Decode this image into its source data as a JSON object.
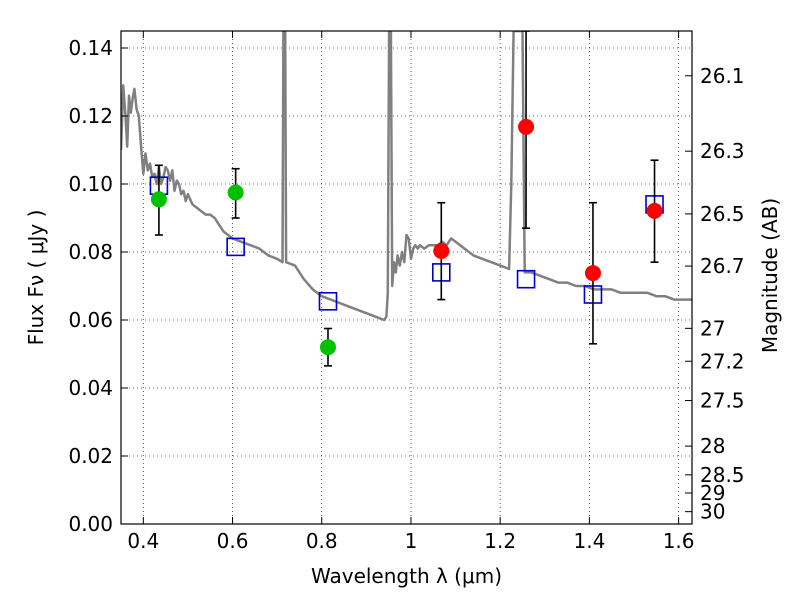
{
  "chart_data": {
    "type": "scatter",
    "xlabel": "Wavelength  λ (μm)",
    "ylabel": "Flux  Fν  ( μJy )",
    "y2label": "Magnitude (AB)",
    "xlim": [
      0.35,
      1.63
    ],
    "ylim": [
      0.0,
      0.145
    ],
    "grid": true,
    "x_ticks": [
      {
        "value": 0.4,
        "label": "0.4"
      },
      {
        "value": 0.6,
        "label": "0.6"
      },
      {
        "value": 0.8,
        "label": "0.8"
      },
      {
        "value": 1.0,
        "label": "1"
      },
      {
        "value": 1.2,
        "label": "1.2"
      },
      {
        "value": 1.4,
        "label": "1.4"
      },
      {
        "value": 1.6,
        "label": "1.6"
      }
    ],
    "y_ticks": [
      {
        "value": 0.0,
        "label": "0.00"
      },
      {
        "value": 0.02,
        "label": "0.02"
      },
      {
        "value": 0.04,
        "label": "0.04"
      },
      {
        "value": 0.06,
        "label": "0.06"
      },
      {
        "value": 0.08,
        "label": "0.08"
      },
      {
        "value": 0.1,
        "label": "0.10"
      },
      {
        "value": 0.12,
        "label": "0.12"
      },
      {
        "value": 0.14,
        "label": "0.14"
      }
    ],
    "y2_ticks": [
      {
        "mag": 26.1,
        "label": "26.1"
      },
      {
        "mag": 26.3,
        "label": "26.3"
      },
      {
        "mag": 26.5,
        "label": "26.5"
      },
      {
        "mag": 26.7,
        "label": "26.7"
      },
      {
        "mag": 27.0,
        "label": "27"
      },
      {
        "mag": 27.2,
        "label": "27.2"
      },
      {
        "mag": 27.5,
        "label": "27.5"
      },
      {
        "mag": 28.0,
        "label": "28"
      },
      {
        "mag": 28.5,
        "label": "28.5"
      },
      {
        "mag": 29.0,
        "label": "29"
      },
      {
        "mag": 30.0,
        "label": "30"
      }
    ],
    "series": [
      {
        "kind": "line",
        "color": "#808080",
        "points": [
          [
            0.35,
            0.11
          ],
          [
            0.355,
            0.129
          ],
          [
            0.36,
            0.12
          ],
          [
            0.364,
            0.111
          ],
          [
            0.368,
            0.126
          ],
          [
            0.372,
            0.121
          ],
          [
            0.376,
            0.125
          ],
          [
            0.38,
            0.128
          ],
          [
            0.385,
            0.122
          ],
          [
            0.39,
            0.12
          ],
          [
            0.395,
            0.111
          ],
          [
            0.4,
            0.103
          ],
          [
            0.405,
            0.109
          ],
          [
            0.41,
            0.104
          ],
          [
            0.415,
            0.106
          ],
          [
            0.42,
            0.102
          ],
          [
            0.425,
            0.103
          ],
          [
            0.43,
            0.1
          ],
          [
            0.435,
            0.105
          ],
          [
            0.44,
            0.1
          ],
          [
            0.445,
            0.102
          ],
          [
            0.45,
            0.105
          ],
          [
            0.455,
            0.104
          ],
          [
            0.46,
            0.101
          ],
          [
            0.465,
            0.104
          ],
          [
            0.47,
            0.098
          ],
          [
            0.475,
            0.101
          ],
          [
            0.48,
            0.1
          ],
          [
            0.485,
            0.097
          ],
          [
            0.49,
            0.098
          ],
          [
            0.495,
            0.095
          ],
          [
            0.5,
            0.097
          ],
          [
            0.51,
            0.094
          ],
          [
            0.52,
            0.093
          ],
          [
            0.53,
            0.092
          ],
          [
            0.54,
            0.091
          ],
          [
            0.55,
            0.091
          ],
          [
            0.56,
            0.09
          ],
          [
            0.57,
            0.088
          ],
          [
            0.58,
            0.086
          ],
          [
            0.59,
            0.085
          ],
          [
            0.6,
            0.084
          ],
          [
            0.62,
            0.083
          ],
          [
            0.64,
            0.082
          ],
          [
            0.66,
            0.081
          ],
          [
            0.68,
            0.079
          ],
          [
            0.7,
            0.078
          ],
          [
            0.712,
            0.077
          ],
          [
            0.714,
            0.145
          ],
          [
            0.718,
            0.145
          ],
          [
            0.72,
            0.077
          ],
          [
            0.74,
            0.076
          ],
          [
            0.76,
            0.072
          ],
          [
            0.78,
            0.069
          ],
          [
            0.8,
            0.067
          ],
          [
            0.82,
            0.066
          ],
          [
            0.84,
            0.065
          ],
          [
            0.86,
            0.064
          ],
          [
            0.88,
            0.063
          ],
          [
            0.9,
            0.062
          ],
          [
            0.92,
            0.061
          ],
          [
            0.94,
            0.06
          ],
          [
            0.945,
            0.061
          ],
          [
            0.948,
            0.068
          ],
          [
            0.951,
            0.145
          ],
          [
            0.955,
            0.145
          ],
          [
            0.958,
            0.07
          ],
          [
            0.962,
            0.077
          ],
          [
            0.966,
            0.074
          ],
          [
            0.97,
            0.079
          ],
          [
            0.975,
            0.076
          ],
          [
            0.98,
            0.08
          ],
          [
            0.985,
            0.077
          ],
          [
            0.99,
            0.085
          ],
          [
            0.995,
            0.084
          ],
          [
            1.0,
            0.078
          ],
          [
            1.005,
            0.081
          ],
          [
            1.01,
            0.082
          ],
          [
            1.015,
            0.081
          ],
          [
            1.02,
            0.082
          ],
          [
            1.03,
            0.081
          ],
          [
            1.04,
            0.082
          ],
          [
            1.05,
            0.082
          ],
          [
            1.06,
            0.082
          ],
          [
            1.07,
            0.083
          ],
          [
            1.08,
            0.082
          ],
          [
            1.09,
            0.084
          ],
          [
            1.1,
            0.083
          ],
          [
            1.12,
            0.081
          ],
          [
            1.14,
            0.079
          ],
          [
            1.16,
            0.078
          ],
          [
            1.18,
            0.077
          ],
          [
            1.2,
            0.076
          ],
          [
            1.22,
            0.075
          ],
          [
            1.225,
            0.1
          ],
          [
            1.23,
            0.145
          ],
          [
            1.235,
            0.145
          ],
          [
            1.24,
            0.145
          ],
          [
            1.25,
            0.145
          ],
          [
            1.255,
            0.074
          ],
          [
            1.27,
            0.074
          ],
          [
            1.29,
            0.073
          ],
          [
            1.31,
            0.072
          ],
          [
            1.33,
            0.071
          ],
          [
            1.35,
            0.071
          ],
          [
            1.37,
            0.07
          ],
          [
            1.39,
            0.07
          ],
          [
            1.41,
            0.069
          ],
          [
            1.43,
            0.069
          ],
          [
            1.45,
            0.069
          ],
          [
            1.47,
            0.068
          ],
          [
            1.49,
            0.068
          ],
          [
            1.51,
            0.068
          ],
          [
            1.53,
            0.068
          ],
          [
            1.55,
            0.067
          ],
          [
            1.57,
            0.067
          ],
          [
            1.59,
            0.066
          ],
          [
            1.61,
            0.066
          ],
          [
            1.63,
            0.066
          ]
        ]
      },
      {
        "kind": "points",
        "marker": "circle",
        "color": "#00c000",
        "points": [
          {
            "x": 0.435,
            "y": 0.0955,
            "yerr_low": 0.085,
            "yerr_high": 0.1055
          },
          {
            "x": 0.607,
            "y": 0.0975,
            "yerr_low": 0.09,
            "yerr_high": 0.1045
          },
          {
            "x": 0.814,
            "y": 0.052,
            "yerr_low": 0.0465,
            "yerr_high": 0.0575
          }
        ]
      },
      {
        "kind": "points",
        "marker": "circle",
        "color": "#ff0000",
        "points": [
          {
            "x": 1.068,
            "y": 0.0803,
            "yerr_low": 0.066,
            "yerr_high": 0.0945
          },
          {
            "x": 1.258,
            "y": 0.1168,
            "yerr_low": 0.087,
            "yerr_high": 0.145
          },
          {
            "x": 1.408,
            "y": 0.0738,
            "yerr_low": 0.053,
            "yerr_high": 0.0945
          },
          {
            "x": 1.546,
            "y": 0.0921,
            "yerr_low": 0.077,
            "yerr_high": 0.107
          }
        ]
      },
      {
        "kind": "points",
        "marker": "square-open",
        "color": "#0000cc",
        "points": [
          {
            "x": 0.435,
            "y": 0.0995
          },
          {
            "x": 0.607,
            "y": 0.0815
          },
          {
            "x": 0.814,
            "y": 0.0655
          },
          {
            "x": 1.068,
            "y": 0.074
          },
          {
            "x": 1.258,
            "y": 0.072
          },
          {
            "x": 1.408,
            "y": 0.0675
          },
          {
            "x": 1.546,
            "y": 0.094
          }
        ]
      }
    ]
  }
}
